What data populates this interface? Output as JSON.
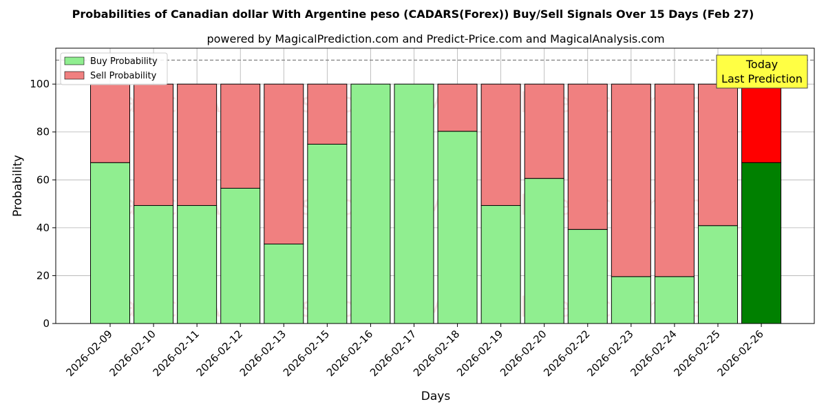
{
  "chart_data": {
    "type": "bar",
    "stacked": true,
    "title": "Probabilities of Canadian dollar With Argentine peso (CADARS(Forex)) Buy/Sell Signals Over 15 Days (Feb 27)",
    "subtitle": "powered by MagicalPrediction.com and Predict-Price.com and MagicalAnalysis.com",
    "xlabel": "Days",
    "ylabel": "Probability",
    "ylim": [
      0,
      115
    ],
    "yticks": [
      0,
      20,
      40,
      60,
      80,
      100
    ],
    "grid": true,
    "legend_position": "top-left",
    "reference_line": 110,
    "categories": [
      "2026-02-09",
      "2026-02-10",
      "2026-02-11",
      "2026-02-12",
      "2026-02-13",
      "2026-02-15",
      "2026-02-16",
      "2026-02-17",
      "2026-02-18",
      "2026-02-19",
      "2026-02-20",
      "2026-02-22",
      "2026-02-23",
      "2026-02-24",
      "2026-02-25",
      "2026-02-26"
    ],
    "series": [
      {
        "name": "Buy Probability",
        "color": "#90ee90",
        "highlight_color": "#008000",
        "values": [
          67.2,
          49.3,
          49.3,
          56.5,
          33.2,
          74.9,
          100,
          100,
          80.3,
          49.3,
          60.6,
          39.3,
          19.6,
          19.6,
          40.9,
          67.2
        ]
      },
      {
        "name": "Sell Probability",
        "color": "#f08080",
        "highlight_color": "#ff0000",
        "values": [
          32.8,
          50.7,
          50.7,
          43.5,
          66.8,
          25.1,
          0,
          0,
          19.7,
          50.7,
          39.4,
          60.7,
          80.4,
          80.4,
          59.1,
          32.8
        ]
      }
    ],
    "highlight_index": 15,
    "annotation": {
      "lines": [
        "Today",
        "Last Prediction"
      ],
      "color": "#ffff44"
    },
    "watermarks": [
      "MagicalAnalysis.com",
      "MagicalPrediction.com"
    ]
  }
}
